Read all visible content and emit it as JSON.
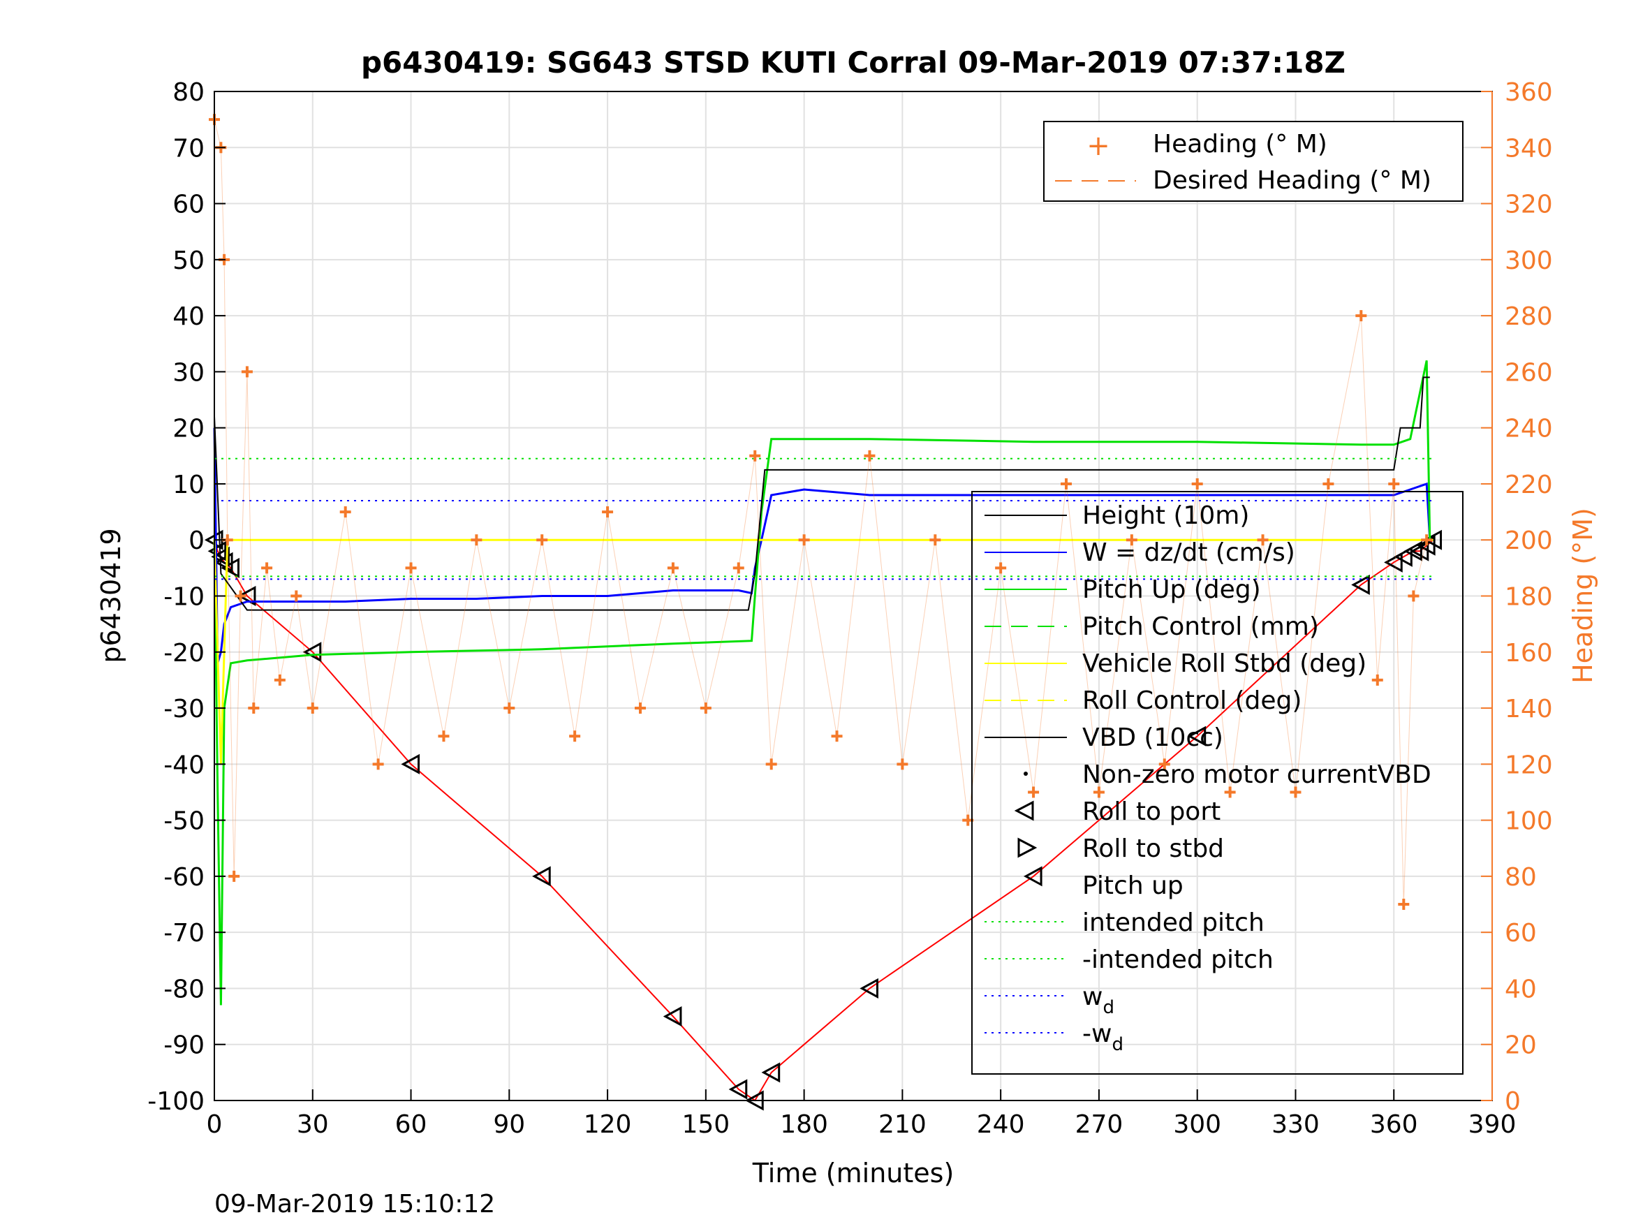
{
  "chart_data": {
    "type": "line",
    "title": "p6430419: SG643 STSD KUTI Corral 09-Mar-2019 07:37:18Z",
    "xlabel": "Time (minutes)",
    "ylabel": "p6430419",
    "ylabel_right": "Heading (°M)",
    "footer": "09-Mar-2019 15:10:12",
    "xlim": [
      0,
      390
    ],
    "ylim": [
      -100,
      80
    ],
    "ylim_right": [
      0,
      360
    ],
    "x_ticks": [
      0,
      30,
      60,
      90,
      120,
      150,
      180,
      210,
      240,
      270,
      300,
      330,
      360,
      390
    ],
    "y_ticks": [
      -100,
      -90,
      -80,
      -70,
      -60,
      -50,
      -40,
      -30,
      -20,
      -10,
      0,
      10,
      20,
      30,
      40,
      50,
      60,
      70,
      80
    ],
    "y_ticks_right": [
      0,
      20,
      40,
      60,
      80,
      100,
      120,
      140,
      160,
      180,
      200,
      220,
      240,
      260,
      280,
      300,
      320,
      340,
      360
    ],
    "grid": true,
    "colors": {
      "heading": "#f4792a",
      "height": "#000000",
      "w": "#0000ff",
      "pitch": "#00e000",
      "roll": "#ffff00",
      "vbd": "#000000",
      "depth": "#ff0000",
      "intended_pitch": "#00e000",
      "wd": "#0000ff"
    },
    "legend_heading": [
      {
        "label": "Heading (° M)"
      },
      {
        "label": "Desired Heading (° M)"
      }
    ],
    "legend_main": [
      {
        "label": "Height (10m)"
      },
      {
        "label": "W = dz/dt (cm/s)"
      },
      {
        "label": "Pitch Up (deg)"
      },
      {
        "label": "Pitch Control (mm)"
      },
      {
        "label": "Vehicle Roll Stbd (deg)"
      },
      {
        "label": "Roll Control (deg)"
      },
      {
        "label": "VBD (10cc)"
      },
      {
        "label": "Non-zero motor currentVBD"
      },
      {
        "label": "Roll to port"
      },
      {
        "label": "Roll to stbd"
      },
      {
        "label": "Pitch up"
      },
      {
        "label": "intended pitch"
      },
      {
        "label": "-intended pitch"
      },
      {
        "label": "w",
        "sub": "d"
      },
      {
        "label": "-w",
        "sub": "d"
      }
    ],
    "series": [
      {
        "name": "Height (10m)",
        "x": [
          0,
          1,
          2,
          3,
          5,
          10,
          30,
          60,
          100,
          140,
          160,
          165,
          170,
          200,
          250,
          300,
          350,
          360,
          363,
          366,
          368,
          370,
          372
        ],
        "y": [
          0,
          -2,
          -3,
          -4,
          -5,
          -10,
          -20,
          -40,
          -60,
          -85,
          -98,
          -100,
          -95,
          -80,
          -60,
          -35,
          -8,
          -4,
          -3,
          -2,
          -2,
          -1,
          0
        ]
      },
      {
        "name": "W = dz/dt (cm/s)",
        "x": [
          0,
          1,
          2,
          3,
          5,
          10,
          20,
          40,
          60,
          80,
          100,
          120,
          140,
          160,
          164,
          165,
          167,
          170,
          180,
          200,
          240,
          280,
          320,
          350,
          360,
          365,
          370,
          371
        ],
        "y": [
          20,
          -22,
          -20,
          -15,
          -12,
          -11,
          -11,
          -11,
          -10.5,
          -10.5,
          -10,
          -10,
          -9,
          -9,
          -9.5,
          -5,
          0,
          8,
          9,
          8,
          8,
          8,
          8,
          8,
          8,
          9,
          10,
          0
        ]
      },
      {
        "name": "Pitch Up (deg)",
        "x": [
          0,
          1,
          2,
          3,
          5,
          10,
          30,
          60,
          100,
          140,
          164,
          165,
          167,
          170,
          200,
          250,
          300,
          350,
          360,
          365,
          370,
          371
        ],
        "y": [
          0,
          -45,
          -83,
          -30,
          -22,
          -21.5,
          -20.5,
          -20,
          -19.5,
          -18.5,
          -18,
          -10,
          5,
          18,
          18,
          17.5,
          17.5,
          17,
          17,
          18,
          32,
          0
        ]
      },
      {
        "name": "Vehicle Roll Stbd (deg)",
        "x": [
          0,
          2,
          4,
          10,
          30,
          60,
          100,
          140,
          165,
          170,
          200,
          250,
          300,
          350,
          372
        ],
        "y": [
          0,
          -40,
          0,
          0,
          0,
          0,
          0,
          0,
          0,
          0,
          0,
          0,
          0,
          0,
          0
        ]
      },
      {
        "name": "VBD (10cc)",
        "x": [
          0,
          2,
          10,
          163,
          165,
          168,
          360,
          362,
          368,
          369,
          371
        ],
        "y": [
          22,
          -6,
          -12.5,
          -12.5,
          -6,
          12.5,
          12.5,
          20,
          20,
          29,
          29
        ]
      },
      {
        "name": "intended pitch",
        "x": [
          0,
          372
        ],
        "y": [
          14.5,
          14.5
        ]
      },
      {
        "name": "-intended pitch",
        "x": [
          0,
          372
        ],
        "y": [
          -6.5,
          -6.5
        ]
      },
      {
        "name": "w",
        "x": [
          0,
          372
        ],
        "y": [
          7,
          7
        ]
      },
      {
        "name": "-w",
        "x": [
          0,
          372
        ],
        "y": [
          -7,
          -7
        ]
      },
      {
        "name": "Heading (° M)",
        "axis": "right",
        "x": [
          0,
          2,
          3,
          4,
          6,
          8,
          10,
          12,
          16,
          20,
          25,
          30,
          40,
          50,
          60,
          70,
          80,
          90,
          100,
          110,
          120,
          130,
          140,
          150,
          160,
          165,
          170,
          180,
          190,
          200,
          210,
          220,
          230,
          240,
          250,
          260,
          270,
          280,
          290,
          300,
          310,
          320,
          330,
          340,
          350,
          355,
          360,
          363,
          366,
          370
        ],
        "y": [
          350,
          340,
          300,
          200,
          80,
          180,
          260,
          140,
          190,
          150,
          180,
          140,
          210,
          120,
          190,
          130,
          200,
          140,
          200,
          130,
          210,
          140,
          190,
          140,
          190,
          230,
          120,
          200,
          130,
          230,
          120,
          200,
          100,
          190,
          110,
          220,
          110,
          200,
          120,
          220,
          110,
          200,
          110,
          220,
          280,
          150,
          220,
          70,
          180,
          200
        ]
      }
    ]
  }
}
